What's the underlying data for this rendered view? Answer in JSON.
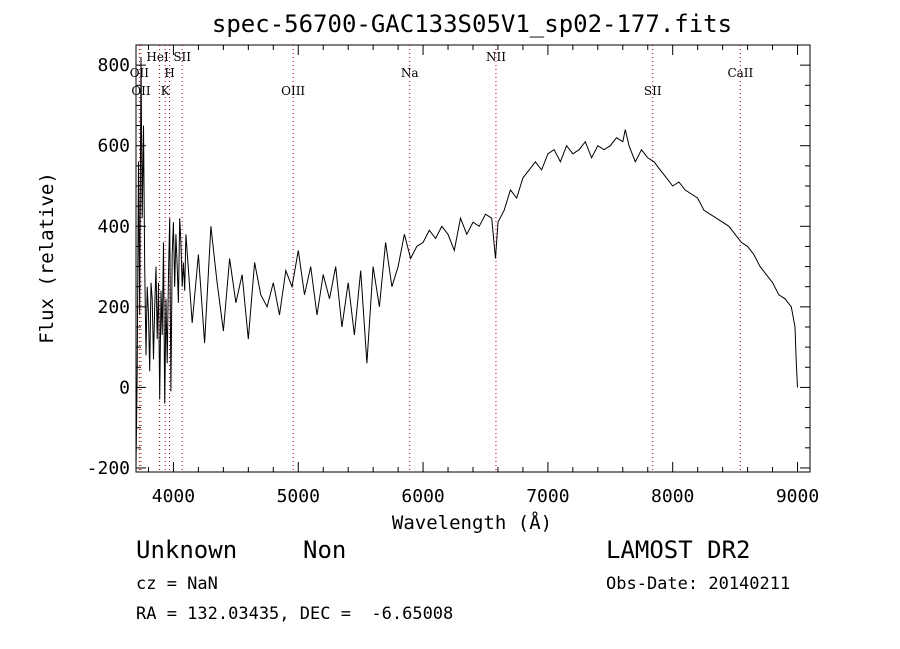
{
  "chart_data": {
    "type": "line",
    "title": "spec-56700-GAC133S05V1_sp02-177.fits",
    "xlabel": "Wavelength (Å)",
    "ylabel": "Flux (relative)",
    "xlim": [
      3700,
      9100
    ],
    "ylim": [
      -210,
      850
    ],
    "xticks": [
      "4000",
      "5000",
      "6000",
      "7000",
      "8000",
      "9000"
    ],
    "yticks": [
      "-200",
      "0",
      "200",
      "400",
      "600",
      "800"
    ],
    "grid": false,
    "series": [
      {
        "x": [
          3700,
          3710,
          3720,
          3730,
          3740,
          3750,
          3760,
          3770,
          3780,
          3790,
          3800,
          3810,
          3820,
          3830,
          3840,
          3850,
          3860,
          3870,
          3880,
          3890,
          3900,
          3910,
          3920,
          3930,
          3940,
          3950,
          3960,
          3970,
          3980,
          3990,
          4000,
          4010,
          4020,
          4030,
          4040,
          4050,
          4060,
          4070,
          4080,
          4090,
          4100,
          4150,
          4200,
          4250,
          4300,
          4350,
          4400,
          4450,
          4500,
          4550,
          4600,
          4650,
          4700,
          4750,
          4800,
          4850,
          4900,
          4950,
          5000,
          5050,
          5100,
          5150,
          5200,
          5250,
          5300,
          5350,
          5400,
          5450,
          5500,
          5550,
          5600,
          5650,
          5700,
          5750,
          5800,
          5850,
          5900,
          5950,
          6000,
          6050,
          6100,
          6150,
          6200,
          6250,
          6300,
          6350,
          6400,
          6450,
          6500,
          6550,
          6580,
          6600,
          6650,
          6700,
          6750,
          6800,
          6850,
          6900,
          6950,
          7000,
          7050,
          7100,
          7150,
          7200,
          7250,
          7300,
          7350,
          7400,
          7450,
          7500,
          7550,
          7600,
          7620,
          7650,
          7700,
          7750,
          7800,
          7850,
          7900,
          7950,
          8000,
          8050,
          8100,
          8150,
          8200,
          8250,
          8300,
          8350,
          8400,
          8450,
          8500,
          8550,
          8600,
          8650,
          8700,
          8750,
          8800,
          8850,
          8900,
          8950,
          8980,
          8990,
          9000
        ],
        "y": [
          -200,
          40,
          560,
          180,
          820,
          420,
          650,
          300,
          80,
          250,
          180,
          40,
          260,
          220,
          70,
          200,
          300,
          120,
          260,
          -30,
          240,
          130,
          360,
          -40,
          220,
          60,
          280,
          420,
          -10,
          330,
          410,
          250,
          380,
          300,
          210,
          420,
          360,
          250,
          310,
          240,
          380,
          160,
          330,
          110,
          400,
          260,
          140,
          320,
          210,
          280,
          120,
          310,
          230,
          200,
          260,
          180,
          290,
          250,
          340,
          230,
          300,
          180,
          280,
          220,
          300,
          150,
          260,
          130,
          290,
          60,
          300,
          200,
          360,
          250,
          300,
          380,
          320,
          350,
          360,
          390,
          370,
          400,
          380,
          340,
          420,
          380,
          410,
          400,
          430,
          420,
          320,
          410,
          440,
          490,
          470,
          520,
          540,
          560,
          540,
          580,
          590,
          560,
          600,
          580,
          590,
          610,
          570,
          600,
          590,
          600,
          620,
          610,
          640,
          600,
          560,
          590,
          570,
          560,
          540,
          520,
          500,
          510,
          490,
          480,
          470,
          440,
          430,
          420,
          410,
          400,
          380,
          360,
          350,
          330,
          300,
          280,
          260,
          230,
          220,
          200,
          150,
          60,
          0
        ]
      }
    ],
    "lines": [
      {
        "label": "OII",
        "x": 3727
      },
      {
        "label": "OII",
        "x": 3740
      },
      {
        "label": "HeI",
        "x": 3889
      },
      {
        "label": "K",
        "x": 3934
      },
      {
        "label": "H",
        "x": 3969
      },
      {
        "label": "SII",
        "x": 4070
      },
      {
        "label": "OIII",
        "x": 4959
      },
      {
        "label": "Na",
        "x": 5893
      },
      {
        "label": "NII",
        "x": 6584
      },
      {
        "label": "SII",
        "x": 7840
      },
      {
        "label": "CaII",
        "x": 8542
      }
    ]
  },
  "info": {
    "class": "Unknown",
    "subclass": "Non",
    "survey": "LAMOST DR2",
    "cz": "cz = NaN",
    "obs_date": "Obs-Date: 20140211",
    "coords": "RA = 132.03435, DEC =  -6.65008"
  }
}
